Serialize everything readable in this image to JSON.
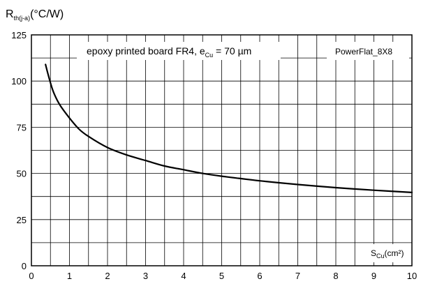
{
  "chart_data": {
    "type": "line",
    "ylabel": {
      "main": "R",
      "sub": "th(j-a)",
      "unit": "(°C/W)"
    },
    "xlabel": {
      "main": "S",
      "sub": "Cu",
      "unit": "(cm²)"
    },
    "annotation": {
      "text": "epoxy printed board FR4, e",
      "sub": "Cu",
      "after": " = 70 µm"
    },
    "device_label": "PowerFlat_8X8",
    "xlim": [
      0,
      10
    ],
    "ylim": [
      0,
      125
    ],
    "x_ticks": [
      "0",
      "1",
      "2",
      "3",
      "4",
      "5",
      "6",
      "7",
      "8",
      "9",
      "10"
    ],
    "y_ticks": [
      "0",
      "25",
      "50",
      "75",
      "100",
      "125"
    ],
    "grid": true,
    "series": [
      {
        "x": [
          0.37,
          0.5,
          0.6,
          0.75,
          1.0,
          1.25,
          1.5,
          2.0,
          2.5,
          3.0,
          3.5,
          4.0,
          4.5,
          5.0,
          6.0,
          7.0,
          8.0,
          9.0,
          10.0
        ],
        "y": [
          109,
          99,
          93,
          87,
          80,
          74,
          70,
          64,
          60,
          57,
          54,
          52,
          50,
          48.5,
          46,
          44,
          42.3,
          40.9,
          39.7
        ]
      }
    ]
  }
}
